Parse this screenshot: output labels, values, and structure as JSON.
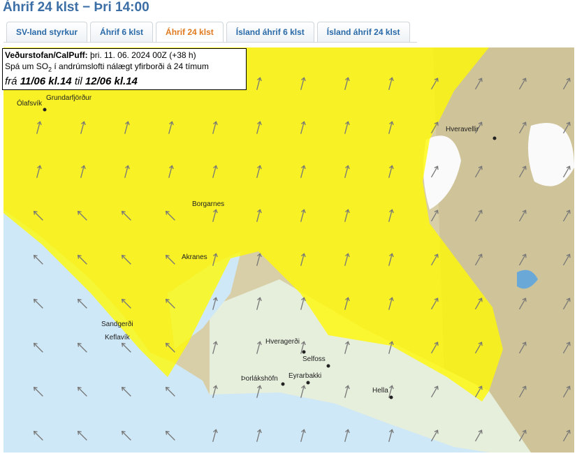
{
  "header": {
    "title": "Áhrif 24 klst − Þri 14:00"
  },
  "tabs": [
    {
      "label": "SV-land styrkur"
    },
    {
      "label": "Áhrif 6 klst"
    },
    {
      "label": "Áhrif 24 klst"
    },
    {
      "label": "Ísland áhrif 6 klst"
    },
    {
      "label": "Ísland áhrif 24 klst"
    }
  ],
  "info_box": {
    "source": "Veðurstofan/CalPuff:",
    "run": "þri. 11. 06. 2024 00Z (+38 h)",
    "description_prefix": "Spá um SO",
    "description_subscript": "2",
    "description_suffix": "í andrúmslofti nálægt yfirborði á 24 tímum",
    "from_word": "frá",
    "from": "11/06 kl.14",
    "to_word": "til",
    "to": "12/06 kl.14"
  },
  "places": [
    {
      "label": "Ólafsvík"
    },
    {
      "label": "Grundarfjörður"
    },
    {
      "label": "Hveravellir"
    },
    {
      "label": "Borgarnes"
    },
    {
      "label": "Akranes"
    },
    {
      "label": "Sandgerði"
    },
    {
      "label": "Keflavík"
    },
    {
      "label": "Hveragerði"
    },
    {
      "label": "Selfoss"
    },
    {
      "label": "Þorlákshöfn"
    },
    {
      "label": "Eyrarbakki"
    },
    {
      "label": "Hella"
    }
  ]
}
